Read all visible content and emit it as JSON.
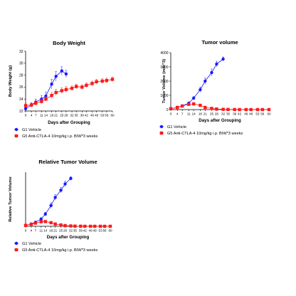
{
  "series_styles": [
    {
      "color": "#1a1aff",
      "marker": "circle"
    },
    {
      "color": "#ff1a1a",
      "marker": "square"
    }
  ],
  "chart_data": [
    {
      "type": "line",
      "title": "Body Weight",
      "xlabel": "Days after Grouping",
      "ylabel": "Body Weight (g)",
      "xlim": [
        0,
        60
      ],
      "ylim": [
        22,
        32
      ],
      "x_ticks": [
        0,
        4,
        7,
        11,
        14,
        18,
        21,
        25,
        28,
        32,
        35,
        39,
        42,
        46,
        49,
        53,
        56,
        60
      ],
      "y_ticks": [
        22,
        24,
        26,
        28,
        30,
        32
      ],
      "grid": false,
      "legend": "bottom",
      "series": [
        {
          "name": "G1 Vehicle",
          "x": [
            0,
            4,
            7,
            11,
            14,
            18,
            21,
            25,
            28
          ],
          "y": [
            22.4,
            23.0,
            23.5,
            24.0,
            24.5,
            26.5,
            27.8,
            28.7,
            28.2
          ],
          "err": [
            0.3,
            0.4,
            0.5,
            0.6,
            0.7,
            0.8,
            0.8,
            0.7,
            0.6
          ]
        },
        {
          "name": "G5 Anti-CTLA-4 10mg/kg i.p. BIW*3 weeks",
          "x": [
            0,
            4,
            7,
            11,
            14,
            18,
            21,
            25,
            28,
            32,
            35,
            39,
            42,
            46,
            49,
            53,
            56,
            60
          ],
          "y": [
            22.9,
            23.0,
            23.3,
            23.6,
            24.0,
            24.6,
            25.1,
            25.4,
            25.6,
            25.8,
            26.1,
            26.0,
            26.3,
            26.6,
            26.9,
            27.0,
            27.1,
            27.3
          ],
          "err": [
            0.3,
            0.3,
            0.4,
            0.4,
            0.4,
            0.5,
            0.5,
            0.5,
            0.5,
            0.4,
            0.4,
            0.4,
            0.4,
            0.4,
            0.4,
            0.4,
            0.4,
            0.4
          ]
        }
      ]
    },
    {
      "type": "line",
      "title": "Tumor volume",
      "xlabel": "Days after Grouping",
      "ylabel": "Tumor Volume (mm^3)",
      "xlim": [
        0,
        60
      ],
      "ylim": [
        0,
        4000
      ],
      "x_ticks": [
        0,
        4,
        7,
        11,
        14,
        18,
        21,
        25,
        28,
        32,
        35,
        39,
        42,
        46,
        49,
        53,
        56,
        60
      ],
      "y_ticks": [
        0,
        1000,
        2000,
        3000,
        4000
      ],
      "grid": false,
      "legend": "bottom",
      "series": [
        {
          "name": "G1 Vehicle",
          "x": [
            0,
            4,
            7,
            11,
            14,
            18,
            21,
            25,
            28,
            32
          ],
          "y": [
            60,
            150,
            260,
            450,
            800,
            1400,
            2000,
            2600,
            3200,
            3550
          ],
          "err": [
            10,
            30,
            50,
            80,
            120,
            180,
            220,
            250,
            200,
            150
          ]
        },
        {
          "name": "G5 Anti-CTLA-4 10mg/kg i.p. BIW*3 weeks",
          "x": [
            0,
            4,
            7,
            11,
            14,
            18,
            21,
            25,
            28,
            32,
            35,
            39,
            42,
            46,
            49,
            53,
            56,
            60
          ],
          "y": [
            60,
            150,
            250,
            370,
            400,
            300,
            150,
            80,
            40,
            20,
            10,
            5,
            0,
            0,
            0,
            0,
            0,
            0
          ],
          "err": [
            10,
            30,
            40,
            60,
            80,
            70,
            50,
            30,
            20,
            10,
            5,
            0,
            0,
            0,
            0,
            0,
            0,
            0
          ]
        }
      ]
    },
    {
      "type": "line",
      "title": "Relative Tumor Volume",
      "xlabel": "Days after Grouping",
      "ylabel": "Relative Tumor Volume",
      "xlim": [
        0,
        60
      ],
      "ylim": [
        0,
        60
      ],
      "x_ticks": [
        0,
        4,
        7,
        11,
        14,
        18,
        21,
        25,
        28,
        32,
        35,
        39,
        42,
        46,
        49,
        53,
        56,
        60
      ],
      "y_ticks": [],
      "grid": false,
      "legend": "bottom",
      "series": [
        {
          "name": "G1 Vehicle",
          "x": [
            0,
            4,
            7,
            11,
            14,
            18,
            21,
            25,
            28,
            32
          ],
          "y": [
            1,
            2.5,
            4.5,
            8,
            13.5,
            23,
            32,
            40,
            47,
            53
          ],
          "err": [
            0,
            0.5,
            1,
            1.5,
            2,
            3,
            3,
            3,
            3,
            2
          ]
        },
        {
          "name": "G5 Anti-CTLA-4 10mg/kg i.p. BIW*3 weeks",
          "x": [
            0,
            4,
            7,
            11,
            14,
            18,
            21,
            25,
            28,
            32,
            35,
            39,
            42,
            46,
            49,
            53,
            56,
            60
          ],
          "y": [
            1,
            2.3,
            3.5,
            5,
            5.2,
            4,
            2.5,
            1.5,
            0.8,
            0.4,
            0.2,
            0.1,
            0,
            0,
            0,
            0,
            0,
            0
          ],
          "err": [
            0,
            0.3,
            0.5,
            0.8,
            1,
            0.8,
            0.6,
            0.4,
            0.2,
            0.1,
            0.1,
            0,
            0,
            0,
            0,
            0,
            0,
            0
          ]
        }
      ]
    }
  ]
}
